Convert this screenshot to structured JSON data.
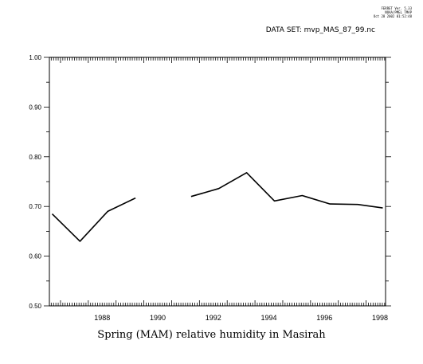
{
  "header": {
    "program": "FERRET Ver. 5.33",
    "org": "NOAA/PMEL TMAP",
    "timestamp": "Oct 28 2002 01:52:48",
    "dataset_label": "DATA SET: mvp_MAS_87_99.nc"
  },
  "chart_data": {
    "type": "line",
    "title": "Spring (MAM) relative humidity in Masirah",
    "xlabel": "",
    "ylabel": "",
    "xlim": [
      1986.6,
      1998.7
    ],
    "ylim": [
      0.5,
      1.0
    ],
    "x_ticks": [
      1988,
      1990,
      1992,
      1994,
      1996,
      1998
    ],
    "y_ticks": [
      "0.50",
      "0.60",
      "0.70",
      "0.80",
      "0.90",
      "1.00"
    ],
    "grid": false,
    "series": [
      {
        "segments": [
          [
            [
              1986.7,
              0.685
            ],
            [
              1987.7,
              0.63
            ],
            [
              1988.7,
              0.69
            ],
            [
              1989.7,
              0.717
            ]
          ],
          [
            [
              1991.7,
              0.72
            ],
            [
              1992.7,
              0.736
            ],
            [
              1993.7,
              0.768
            ],
            [
              1994.7,
              0.711
            ],
            [
              1995.7,
              0.722
            ],
            [
              1996.7,
              0.705
            ],
            [
              1997.7,
              0.704
            ],
            [
              1998.6,
              0.697
            ]
          ]
        ],
        "color": "#000000"
      }
    ]
  }
}
